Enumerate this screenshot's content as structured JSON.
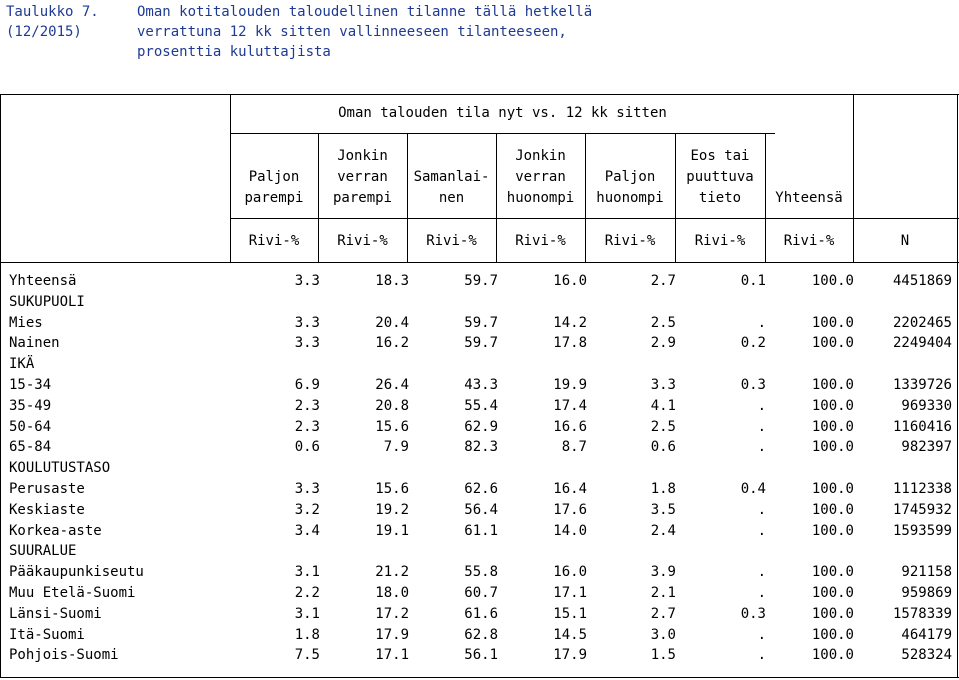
{
  "title": {
    "number_line1": "Taulukko 7.",
    "number_line2": "(12/2015)",
    "text_lines": [
      "Oman kotitalouden taloudellinen tilanne tällä hetkellä",
      "verrattuna 12 kk sitten vallinneeseen tilanteeseen,",
      "prosenttia kuluttajista"
    ]
  },
  "table": {
    "group_header": "Oman talouden tila nyt vs. 12 kk sitten",
    "column_headers": [
      {
        "lines": [
          "",
          "Paljon",
          "parempi"
        ]
      },
      {
        "lines": [
          "Jonkin",
          "verran",
          "parempi"
        ]
      },
      {
        "lines": [
          "",
          "Samanlai-",
          "nen"
        ]
      },
      {
        "lines": [
          "Jonkin",
          "verran",
          "huonompi"
        ]
      },
      {
        "lines": [
          "",
          "Paljon",
          "huonompi"
        ]
      },
      {
        "lines": [
          "Eos tai",
          "puuttuva",
          "tieto"
        ]
      },
      {
        "lines": [
          "",
          "",
          "Yhteensä"
        ]
      }
    ],
    "units": [
      "Rivi-%",
      "Rivi-%",
      "Rivi-%",
      "Rivi-%",
      "Rivi-%",
      "Rivi-%",
      "Rivi-%",
      "N"
    ],
    "rows": [
      {
        "label": "Yhteensä",
        "values": [
          "3.3",
          "18.3",
          "59.7",
          "16.0",
          "2.7",
          "0.1",
          "100.0",
          "4451869"
        ]
      },
      {
        "label": "SUKUPUOLI",
        "values": []
      },
      {
        "label": "Mies",
        "values": [
          "3.3",
          "20.4",
          "59.7",
          "14.2",
          "2.5",
          ".",
          "100.0",
          "2202465"
        ]
      },
      {
        "label": "Nainen",
        "values": [
          "3.3",
          "16.2",
          "59.7",
          "17.8",
          "2.9",
          "0.2",
          "100.0",
          "2249404"
        ]
      },
      {
        "label": "IKÄ",
        "values": []
      },
      {
        "label": "15-34",
        "values": [
          "6.9",
          "26.4",
          "43.3",
          "19.9",
          "3.3",
          "0.3",
          "100.0",
          "1339726"
        ]
      },
      {
        "label": "35-49",
        "values": [
          "2.3",
          "20.8",
          "55.4",
          "17.4",
          "4.1",
          ".",
          "100.0",
          "969330"
        ]
      },
      {
        "label": "50-64",
        "values": [
          "2.3",
          "15.6",
          "62.9",
          "16.6",
          "2.5",
          ".",
          "100.0",
          "1160416"
        ]
      },
      {
        "label": "65-84",
        "values": [
          "0.6",
          "7.9",
          "82.3",
          "8.7",
          "0.6",
          ".",
          "100.0",
          "982397"
        ]
      },
      {
        "label": "KOULUTUSTASO",
        "values": []
      },
      {
        "label": "Perusaste",
        "values": [
          "3.3",
          "15.6",
          "62.6",
          "16.4",
          "1.8",
          "0.4",
          "100.0",
          "1112338"
        ]
      },
      {
        "label": "Keskiaste",
        "values": [
          "3.2",
          "19.2",
          "56.4",
          "17.6",
          "3.5",
          ".",
          "100.0",
          "1745932"
        ]
      },
      {
        "label": "Korkea-aste",
        "values": [
          "3.4",
          "19.1",
          "61.1",
          "14.0",
          "2.4",
          ".",
          "100.0",
          "1593599"
        ]
      },
      {
        "label": "SUURALUE",
        "values": []
      },
      {
        "label": "Pääkaupunkiseutu",
        "values": [
          "3.1",
          "21.2",
          "55.8",
          "16.0",
          "3.9",
          ".",
          "100.0",
          "921158"
        ]
      },
      {
        "label": "Muu Etelä-Suomi",
        "values": [
          "2.2",
          "18.0",
          "60.7",
          "17.1",
          "2.1",
          ".",
          "100.0",
          "959869"
        ]
      },
      {
        "label": "Länsi-Suomi",
        "values": [
          "3.1",
          "17.2",
          "61.6",
          "15.1",
          "2.7",
          "0.3",
          "100.0",
          "1578339"
        ]
      },
      {
        "label": "Itä-Suomi",
        "values": [
          "1.8",
          "17.9",
          "62.8",
          "14.5",
          "3.0",
          ".",
          "100.0",
          "464179"
        ]
      },
      {
        "label": "Pohjois-Suomi",
        "values": [
          "7.5",
          "17.1",
          "56.1",
          "17.9",
          "1.5",
          ".",
          "100.0",
          "528324"
        ]
      }
    ]
  }
}
